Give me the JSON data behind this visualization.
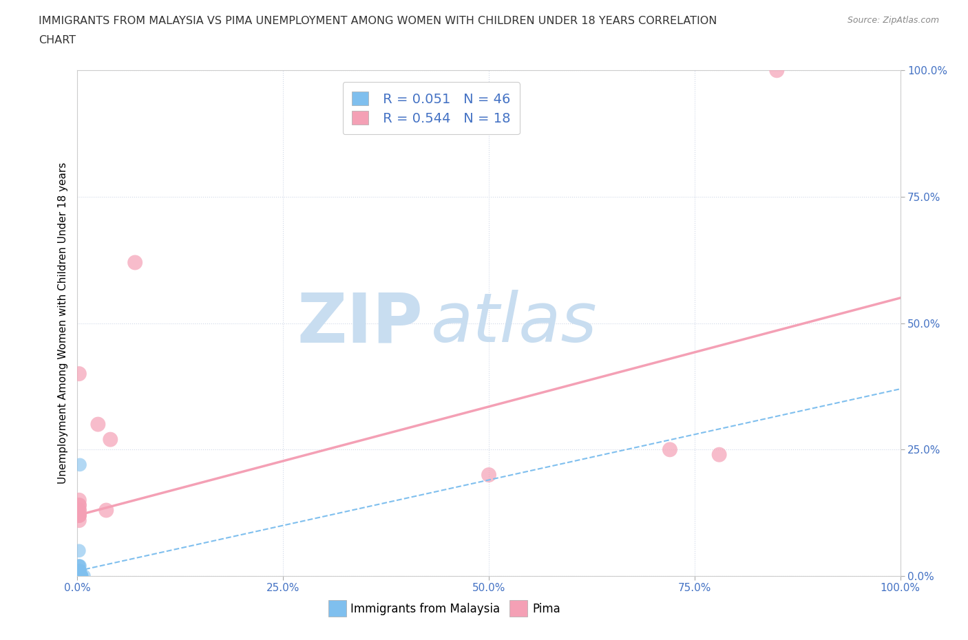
{
  "title_line1": "IMMIGRANTS FROM MALAYSIA VS PIMA UNEMPLOYMENT AMONG WOMEN WITH CHILDREN UNDER 18 YEARS CORRELATION",
  "title_line2": "CHART",
  "source": "Source: ZipAtlas.com",
  "ylabel": "Unemployment Among Women with Children Under 18 years",
  "xlim": [
    0,
    1.0
  ],
  "ylim": [
    0,
    1.0
  ],
  "xticks": [
    0.0,
    0.25,
    0.5,
    0.75,
    1.0
  ],
  "xtick_labels": [
    "0.0%",
    "25.0%",
    "50.0%",
    "75.0%",
    "100.0%"
  ],
  "yticks": [
    0.0,
    0.25,
    0.5,
    0.75,
    1.0
  ],
  "ytick_labels": [
    "0.0%",
    "25.0%",
    "50.0%",
    "75.0%",
    "100.0%"
  ],
  "blue_color": "#7fbfee",
  "pink_color": "#f4a0b5",
  "blue_R": 0.051,
  "blue_N": 46,
  "pink_R": 0.544,
  "pink_N": 18,
  "blue_x": [
    0.002,
    0.003,
    0.004,
    0.002,
    0.003,
    0.002,
    0.004,
    0.005,
    0.003,
    0.002,
    0.003,
    0.004,
    0.002,
    0.003,
    0.005,
    0.002,
    0.003,
    0.004,
    0.002,
    0.003,
    0.002,
    0.004,
    0.003,
    0.002,
    0.003,
    0.005,
    0.002,
    0.003,
    0.004,
    0.002,
    0.003,
    0.002,
    0.004,
    0.003,
    0.002,
    0.005,
    0.003,
    0.002,
    0.004,
    0.003,
    0.002,
    0.008,
    0.003,
    0.004,
    0.002,
    0.003
  ],
  "blue_y": [
    0.0,
    0.0,
    0.0,
    0.01,
    0.0,
    0.02,
    0.0,
    0.0,
    0.01,
    0.0,
    0.0,
    0.0,
    0.0,
    0.01,
    0.0,
    0.0,
    0.02,
    0.0,
    0.0,
    0.0,
    0.05,
    0.0,
    0.0,
    0.0,
    0.01,
    0.0,
    0.0,
    0.0,
    0.0,
    0.02,
    0.0,
    0.0,
    0.0,
    0.01,
    0.0,
    0.0,
    0.0,
    0.0,
    0.0,
    0.0,
    0.0,
    0.0,
    0.01,
    0.0,
    0.0,
    0.22
  ],
  "pink_x": [
    0.002,
    0.025,
    0.002,
    0.04,
    0.002,
    0.002,
    0.002,
    0.07,
    0.002,
    0.002,
    0.5,
    0.72,
    0.78,
    0.85,
    0.002,
    0.035,
    0.002,
    0.002
  ],
  "pink_y": [
    0.12,
    0.3,
    0.15,
    0.27,
    0.11,
    0.14,
    0.13,
    0.62,
    0.12,
    0.13,
    0.2,
    0.25,
    0.24,
    1.0,
    0.4,
    0.13,
    0.12,
    0.14
  ],
  "pink_trend_x0": 0.0,
  "pink_trend_y0": 0.12,
  "pink_trend_x1": 1.0,
  "pink_trend_y1": 0.55,
  "blue_trend_x0": 0.0,
  "blue_trend_y0": 0.01,
  "blue_trend_x1": 1.0,
  "blue_trend_y1": 0.37,
  "watermark_zip": "ZIP",
  "watermark_atlas": "atlas",
  "watermark_color": "#c8ddf0",
  "background_color": "#ffffff",
  "grid_color": "#d0d8e8",
  "tick_color": "#4472c4",
  "title_color": "#333333",
  "legend_label_color": "#4472c4",
  "legend_r_color": "#333333"
}
